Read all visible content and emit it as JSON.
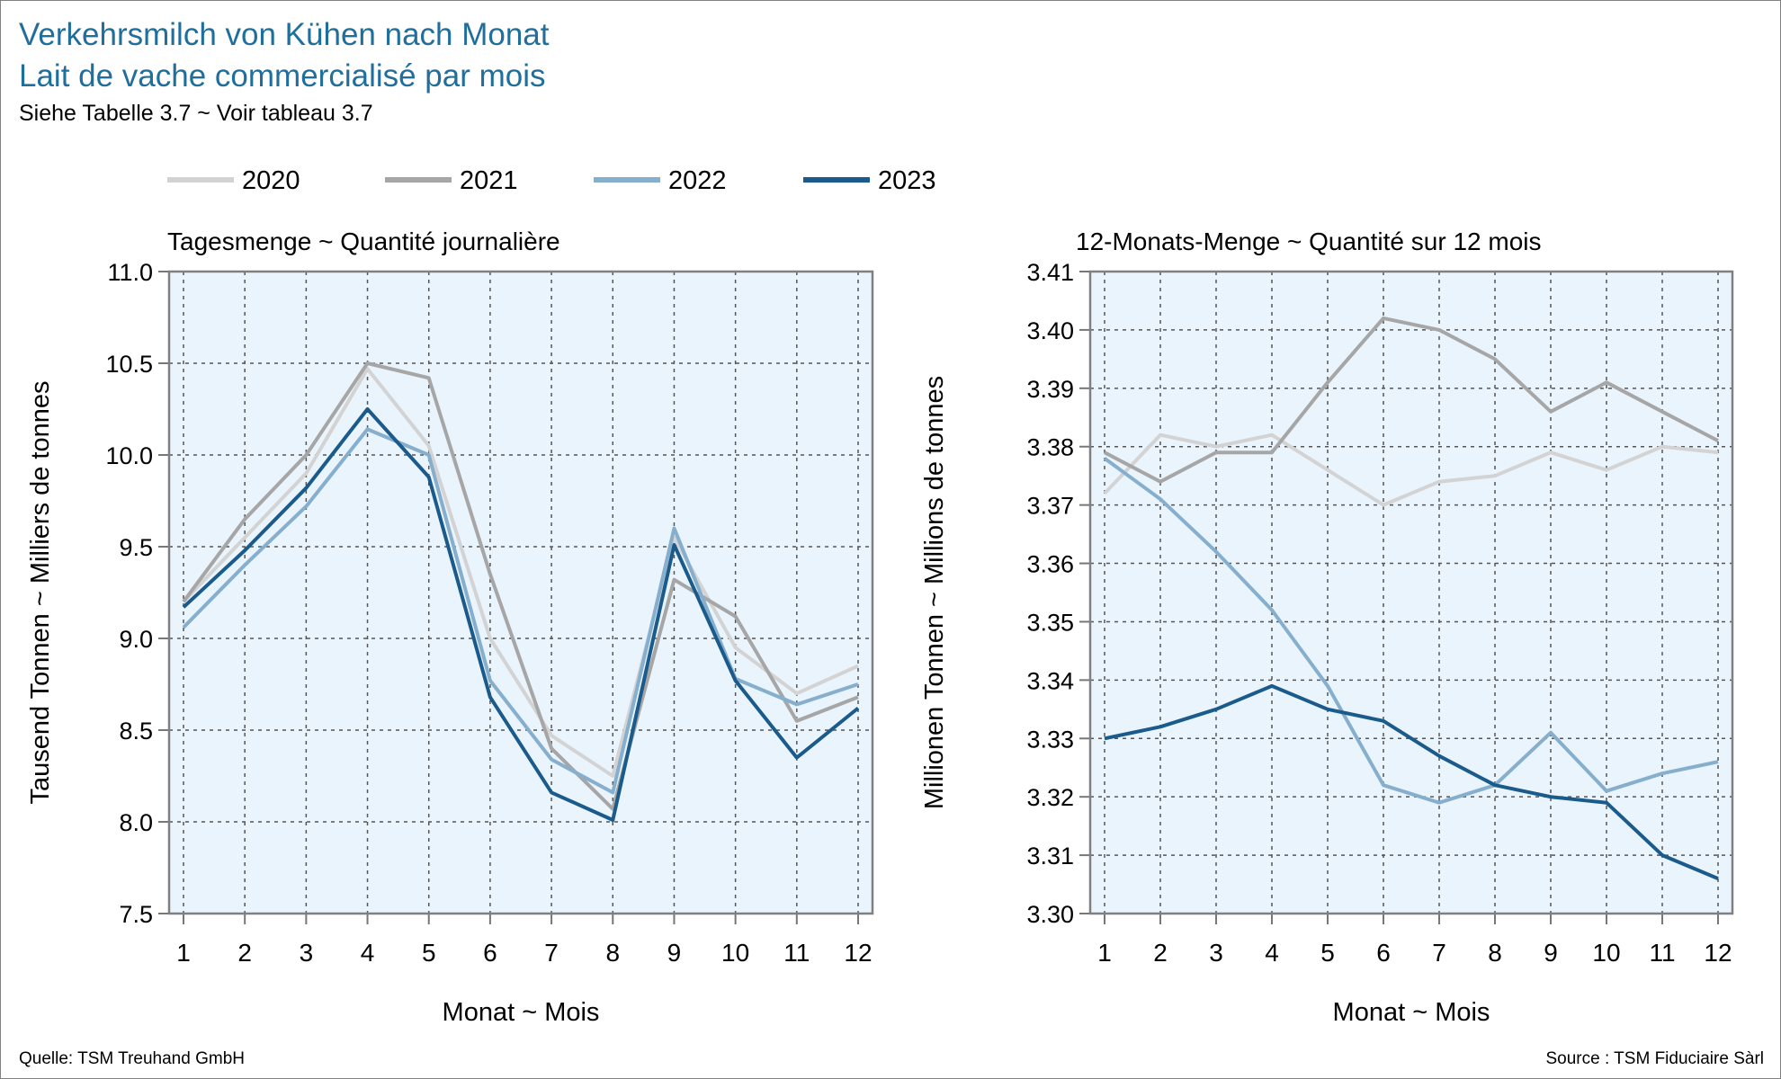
{
  "header": {
    "title_de": "Verkehrsmilch von Kühen nach Monat",
    "title_fr": "Lait de vache commercialisé par mois",
    "subtitle": "Siehe Tabelle 3.7    ~    Voir tableau 3.7"
  },
  "footer": {
    "source_de": "Quelle: TSM Treuhand GmbH",
    "source_fr": "Source : TSM Fiduciaire Sàrl"
  },
  "legend": [
    {
      "name": "2020",
      "color": "#d3d3d3"
    },
    {
      "name": "2021",
      "color": "#a6a6a6"
    },
    {
      "name": "2022",
      "color": "#86aecd"
    },
    {
      "name": "2023",
      "color": "#1b5b8c"
    }
  ],
  "chart_data": [
    {
      "type": "line",
      "title": "Tagesmenge    ~    Quantité journalière",
      "xlabel": "Monat    ~    Mois",
      "ylabel": "Tausend Tonnen    ~    Milliers de tonnes",
      "x": [
        1,
        2,
        3,
        4,
        5,
        6,
        7,
        8,
        9,
        10,
        11,
        12
      ],
      "ylim": [
        7.5,
        11.0
      ],
      "yticks": [
        "7.5",
        "8.0",
        "8.5",
        "9.0",
        "9.5",
        "10.0",
        "10.5",
        "11.0"
      ],
      "grid": true,
      "legend_position": "top",
      "series": [
        {
          "name": "2020",
          "values": [
            9.2,
            9.55,
            9.9,
            10.47,
            10.05,
            9.0,
            8.47,
            8.25,
            9.55,
            8.95,
            8.7,
            8.85
          ]
        },
        {
          "name": "2021",
          "values": [
            9.2,
            9.65,
            10.0,
            10.5,
            10.42,
            9.35,
            8.4,
            8.07,
            9.32,
            9.12,
            8.55,
            8.68
          ]
        },
        {
          "name": "2022",
          "values": [
            9.06,
            9.4,
            9.72,
            10.14,
            10.0,
            8.77,
            8.34,
            8.16,
            9.6,
            8.78,
            8.64,
            8.75
          ]
        },
        {
          "name": "2023",
          "values": [
            9.17,
            9.48,
            9.82,
            10.25,
            9.88,
            8.68,
            8.16,
            8.01,
            9.51,
            8.77,
            8.35,
            8.62
          ]
        }
      ]
    },
    {
      "type": "line",
      "title": "12-Monats-Menge    ~    Quantité sur 12 mois",
      "xlabel": "Monat    ~    Mois",
      "ylabel": "Millionen Tonnen    ~    Millions de tonnes",
      "x": [
        1,
        2,
        3,
        4,
        5,
        6,
        7,
        8,
        9,
        10,
        11,
        12
      ],
      "ylim": [
        3.3,
        3.41
      ],
      "yticks": [
        "3.30",
        "3.31",
        "3.32",
        "3.33",
        "3.34",
        "3.35",
        "3.36",
        "3.37",
        "3.38",
        "3.39",
        "3.40",
        "3.41"
      ],
      "grid": true,
      "legend_position": "top",
      "series": [
        {
          "name": "2020",
          "values": [
            3.372,
            3.382,
            3.38,
            3.382,
            3.376,
            3.37,
            3.374,
            3.375,
            3.379,
            3.376,
            3.38,
            3.379
          ]
        },
        {
          "name": "2021",
          "values": [
            3.379,
            3.374,
            3.379,
            3.379,
            3.391,
            3.402,
            3.4,
            3.395,
            3.386,
            3.391,
            3.386,
            3.381
          ]
        },
        {
          "name": "2022",
          "values": [
            3.378,
            3.371,
            3.362,
            3.352,
            3.339,
            3.322,
            3.319,
            3.322,
            3.331,
            3.321,
            3.324,
            3.326
          ]
        },
        {
          "name": "2023",
          "values": [
            3.33,
            3.332,
            3.335,
            3.339,
            3.335,
            3.333,
            3.327,
            3.322,
            3.32,
            3.319,
            3.31,
            3.306
          ]
        }
      ]
    }
  ]
}
